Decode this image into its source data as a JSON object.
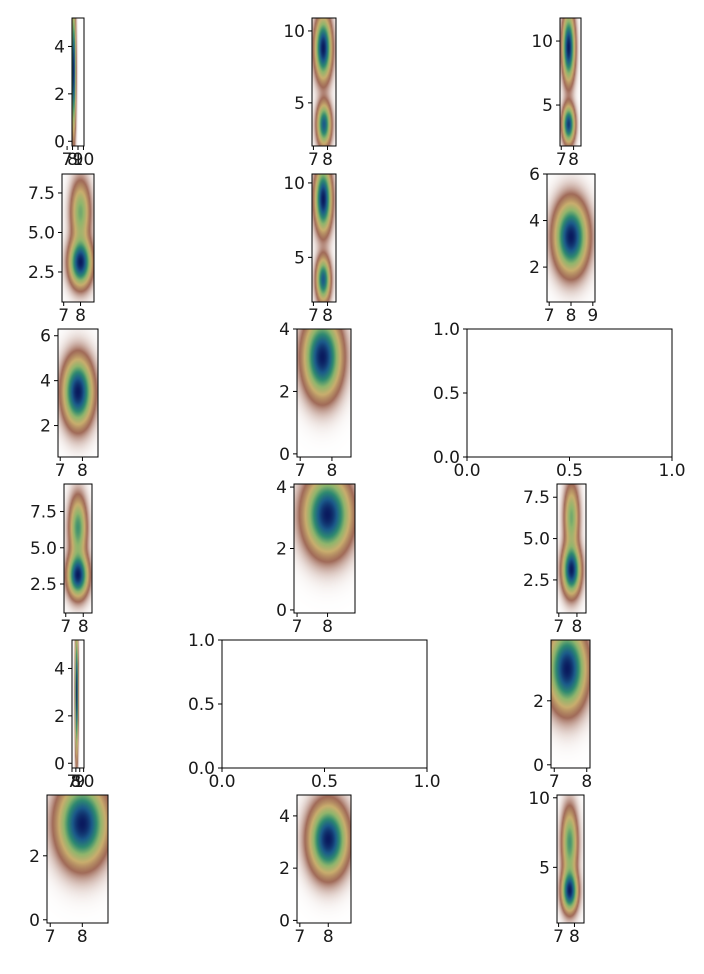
{
  "figure": {
    "colormap": [
      "#ffffff",
      "#a06a58",
      "#c9ae6e",
      "#8fb56c",
      "#2f8a70",
      "#1b5a8a",
      "#0a1a5e"
    ]
  },
  "chart_data": [
    {
      "type": "heatmap",
      "id": "p1",
      "xticks": [
        "7",
        "8",
        "9",
        "10"
      ],
      "yticks": [
        "0",
        "2",
        "4"
      ],
      "xlim": [
        7.9,
        10.1
      ],
      "ylim": [
        -0.2,
        5.2
      ],
      "peaks": [
        [
          8.2,
          3.0,
          0.25,
          1.6,
          1.0
        ]
      ]
    },
    {
      "type": "heatmap",
      "id": "p2",
      "xticks": [
        "7",
        "8"
      ],
      "yticks": [
        "5",
        "10"
      ],
      "xlim": [
        6.9,
        8.6
      ],
      "ylim": [
        2.0,
        10.9
      ],
      "peaks": [
        [
          7.7,
          8.8,
          0.35,
          1.3,
          1.0
        ],
        [
          7.75,
          3.5,
          0.3,
          0.9,
          0.8
        ]
      ]
    },
    {
      "type": "heatmap",
      "id": "p3",
      "xticks": [
        "7",
        "8"
      ],
      "yticks": [
        "5",
        "10"
      ],
      "xlim": [
        6.9,
        8.6
      ],
      "ylim": [
        1.8,
        11.8
      ],
      "peaks": [
        [
          7.6,
          9.5,
          0.3,
          1.6,
          1.0
        ],
        [
          7.6,
          3.5,
          0.3,
          0.9,
          0.9
        ]
      ]
    },
    {
      "type": "heatmap",
      "id": "p4",
      "xticks": [
        "7",
        "8"
      ],
      "yticks": [
        "2.5",
        "5.0",
        "7.5"
      ],
      "xlim": [
        6.9,
        8.8
      ],
      "ylim": [
        0.6,
        8.7
      ],
      "peaks": [
        [
          8.0,
          3.1,
          0.4,
          0.9,
          1.0
        ],
        [
          8.0,
          6.3,
          0.35,
          1.2,
          0.5
        ]
      ]
    },
    {
      "type": "heatmap",
      "id": "p5",
      "xticks": [
        "7",
        "8"
      ],
      "yticks": [
        "5",
        "10"
      ],
      "xlim": [
        6.9,
        8.6
      ],
      "ylim": [
        2.0,
        10.6
      ],
      "peaks": [
        [
          7.7,
          8.9,
          0.35,
          1.3,
          1.0
        ],
        [
          7.7,
          3.5,
          0.3,
          0.9,
          0.8
        ]
      ]
    },
    {
      "type": "heatmap",
      "id": "p6",
      "xticks": [
        "7",
        "8",
        "9"
      ],
      "yticks": [
        "2",
        "4",
        "6"
      ],
      "xlim": [
        6.9,
        9.1
      ],
      "ylim": [
        0.5,
        6.0
      ],
      "peaks": [
        [
          8.0,
          3.3,
          0.45,
          0.9,
          1.0
        ]
      ]
    },
    {
      "type": "heatmap",
      "id": "p7",
      "xticks": [
        "7",
        "8"
      ],
      "yticks": [
        "2",
        "4",
        "6"
      ],
      "xlim": [
        6.9,
        8.7
      ],
      "ylim": [
        0.6,
        6.3
      ],
      "peaks": [
        [
          7.8,
          3.5,
          0.4,
          0.9,
          1.0
        ]
      ]
    },
    {
      "type": "heatmap",
      "id": "p8",
      "xticks": [
        "7",
        "8"
      ],
      "yticks": [
        "0",
        "2",
        "4"
      ],
      "xlim": [
        6.9,
        8.6
      ],
      "ylim": [
        -0.1,
        4.0
      ],
      "peaks": [
        [
          7.7,
          3.1,
          0.35,
          0.75,
          1.0
        ]
      ]
    },
    {
      "type": "empty",
      "id": "p9",
      "xticks": [
        "0.0",
        "0.5",
        "1.0"
      ],
      "yticks": [
        "0.0",
        "0.5",
        "1.0"
      ],
      "xlim": [
        0,
        1
      ],
      "ylim": [
        0,
        1
      ]
    },
    {
      "type": "heatmap",
      "id": "p10",
      "xticks": [
        "7",
        "8"
      ],
      "yticks": [
        "2.5",
        "5.0",
        "7.5"
      ],
      "xlim": [
        6.9,
        8.5
      ],
      "ylim": [
        0.5,
        9.4
      ],
      "peaks": [
        [
          7.7,
          3.1,
          0.35,
          0.9,
          1.0
        ],
        [
          7.7,
          6.4,
          0.3,
          1.3,
          0.6
        ]
      ]
    },
    {
      "type": "heatmap",
      "id": "p11",
      "xticks": [
        "7",
        "8"
      ],
      "yticks": [
        "0",
        "2",
        "4"
      ],
      "xlim": [
        6.9,
        8.9
      ],
      "ylim": [
        -0.1,
        4.1
      ],
      "peaks": [
        [
          8.0,
          3.1,
          0.45,
          0.75,
          1.0
        ]
      ]
    },
    {
      "type": "heatmap",
      "id": "p12",
      "xticks": [
        "7",
        "8"
      ],
      "yticks": [
        "2.5",
        "5.0",
        "7.5"
      ],
      "xlim": [
        6.9,
        8.5
      ],
      "ylim": [
        0.5,
        8.3
      ],
      "peaks": [
        [
          7.7,
          3.1,
          0.3,
          0.9,
          1.0
        ],
        [
          7.7,
          6.3,
          0.25,
          1.2,
          0.5
        ]
      ]
    },
    {
      "type": "heatmap",
      "id": "p13",
      "xticks": [
        "7",
        "8",
        "9",
        "10"
      ],
      "yticks": [
        "0",
        "2",
        "4"
      ],
      "xlim": [
        7.0,
        10.1
      ],
      "ylim": [
        -0.2,
        5.2
      ],
      "peaks": [
        [
          8.2,
          3.0,
          0.25,
          1.6,
          1.0
        ]
      ]
    },
    {
      "type": "empty",
      "id": "p14",
      "xticks": [
        "0.0",
        "0.5",
        "1.0"
      ],
      "yticks": [
        "0.0",
        "0.5",
        "1.0"
      ],
      "xlim": [
        0,
        1
      ],
      "ylim": [
        0,
        1
      ]
    },
    {
      "type": "heatmap",
      "id": "p15",
      "xticks": [
        "7",
        "8"
      ],
      "yticks": [
        "0",
        "2"
      ],
      "xlim": [
        6.9,
        8.1
      ],
      "ylim": [
        -0.1,
        3.9
      ],
      "peaks": [
        [
          7.4,
          3.0,
          0.35,
          0.75,
          1.0
        ]
      ]
    },
    {
      "type": "heatmap",
      "id": "p16",
      "xticks": [
        "7",
        "8"
      ],
      "yticks": [
        "0",
        "2"
      ],
      "xlim": [
        6.9,
        8.8
      ],
      "ylim": [
        -0.1,
        3.9
      ],
      "peaks": [
        [
          8.0,
          3.0,
          0.45,
          0.75,
          1.0
        ]
      ]
    },
    {
      "type": "heatmap",
      "id": "p17",
      "xticks": [
        "7",
        "8"
      ],
      "yticks": [
        "0",
        "2",
        "4"
      ],
      "xlim": [
        6.9,
        8.8
      ],
      "ylim": [
        -0.1,
        4.8
      ],
      "peaks": [
        [
          8.0,
          3.1,
          0.4,
          0.8,
          1.0
        ]
      ]
    },
    {
      "type": "heatmap",
      "id": "p18",
      "xticks": [
        "7",
        "8"
      ],
      "yticks": [
        "5",
        "10"
      ],
      "xlim": [
        6.9,
        8.6
      ],
      "ylim": [
        1.0,
        10.2
      ],
      "peaks": [
        [
          7.7,
          3.3,
          0.3,
          0.9,
          1.0
        ],
        [
          7.7,
          6.8,
          0.3,
          1.5,
          0.6
        ]
      ]
    }
  ]
}
